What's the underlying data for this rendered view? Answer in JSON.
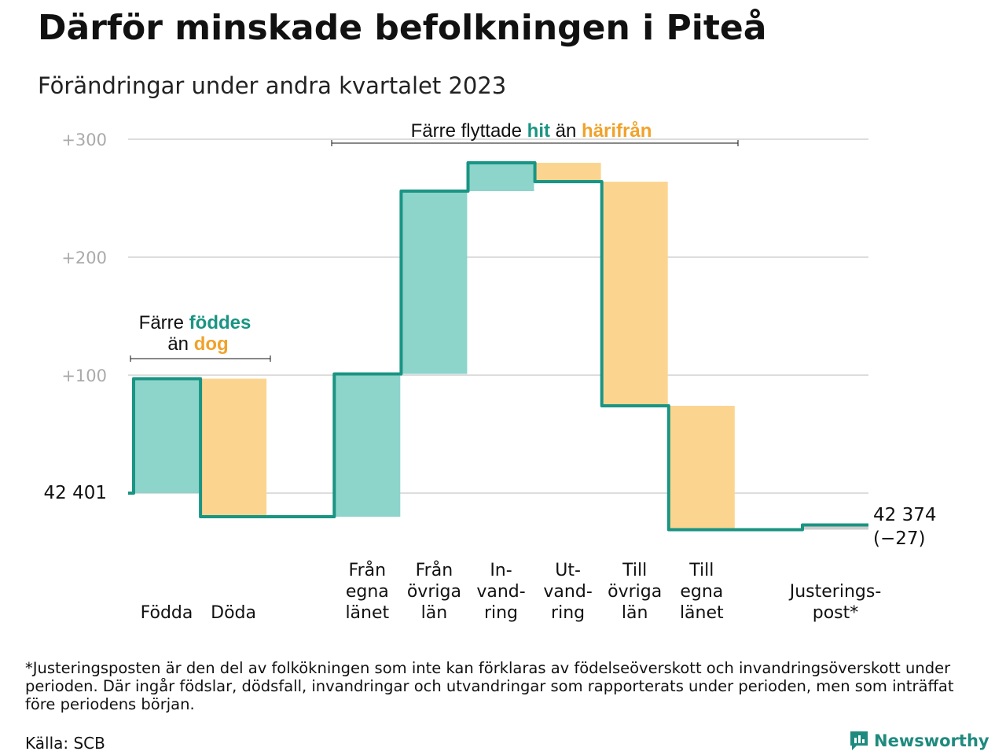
{
  "title": "Därför minskade befolkningen i Piteå",
  "subtitle": "Förändringar under andra kvartalet 2023",
  "colors": {
    "increase_fill": "#8dd4cb",
    "decrease_fill": "#fbd58f",
    "adjust_fill": "#cccccc",
    "line": "#1a9483",
    "teal_text": "#1a9483",
    "orange_text": "#f0a22b",
    "grid": "#dddddd",
    "tick_text": "#aaaaaa"
  },
  "chart_data": {
    "type": "waterfall",
    "y_ticks": [
      "+100",
      "+200",
      "+300"
    ],
    "y_tick_values": [
      100,
      200,
      300
    ],
    "ylim": [
      -50,
      310
    ],
    "start": {
      "label": "42  401",
      "value": 0
    },
    "steps": [
      {
        "name": "Födda",
        "label_lines": [
          "Födda"
        ],
        "delta": 97,
        "type": "increase"
      },
      {
        "name": "Döda",
        "label_lines": [
          "Döda"
        ],
        "delta": -117,
        "type": "decrease"
      },
      {
        "name": "Från egna länet",
        "label_lines": [
          "Från",
          "egna",
          "länet"
        ],
        "delta": 121,
        "type": "increase"
      },
      {
        "name": "Från övriga län",
        "label_lines": [
          "Från",
          "övriga",
          "län"
        ],
        "delta": 155,
        "type": "increase"
      },
      {
        "name": "In-vandring",
        "label_lines": [
          "In-",
          "vand-",
          "ring"
        ],
        "delta": 24,
        "type": "increase"
      },
      {
        "name": "Ut-vandring",
        "label_lines": [
          "Ut-",
          "vand-",
          "ring"
        ],
        "delta": -16,
        "type": "decrease"
      },
      {
        "name": "Till övriga län",
        "label_lines": [
          "Till",
          "övriga",
          "län"
        ],
        "delta": -190,
        "type": "decrease"
      },
      {
        "name": "Till egna länet",
        "label_lines": [
          "Till",
          "egna",
          "länet"
        ],
        "delta": -105,
        "type": "decrease"
      },
      {
        "name": "Justeringspost*",
        "label_lines": [
          "Justerings-",
          "post*"
        ],
        "delta": 4,
        "type": "adjust"
      }
    ],
    "end_value_label": "42 374",
    "end_change_label": "(−27)",
    "annotations": [
      {
        "lines": [
          [
            "Färre ",
            "föddes"
          ],
          [
            "än ",
            "dog"
          ]
        ],
        "span": [
          "Födda",
          "Döda"
        ]
      },
      {
        "lines": [
          [
            "Färre flyttade ",
            "hit",
            " än ",
            "härifrån"
          ]
        ],
        "span": [
          "Från egna länet",
          "Till egna länet"
        ]
      }
    ]
  },
  "footnote": "*Justeringsposten är den del av folkökningen som inte kan förklaras av födelseöverskott och invandringsöverskott under perioden. Där ingår födslar, dödsfall, invandringar och utvandringar som rapporterats under perioden, men som inträffat före periodens början.",
  "source": "Källa: SCB",
  "brand": "Newsworthy"
}
